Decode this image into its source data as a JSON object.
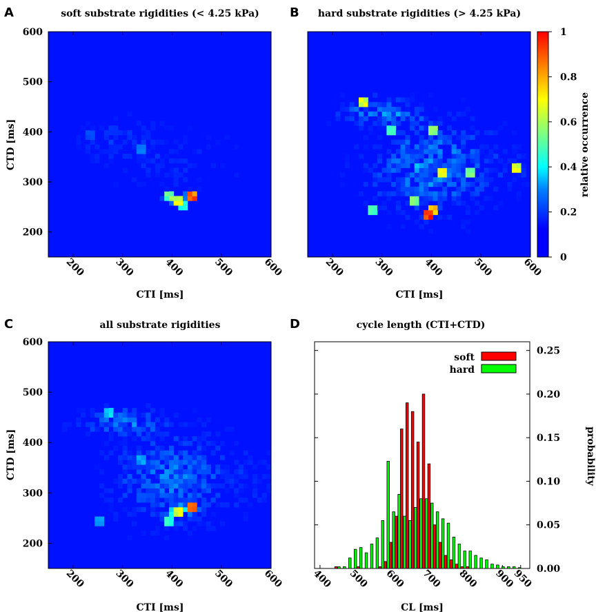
{
  "chart_data": [
    {
      "panel": "A",
      "type": "heatmap",
      "title": "soft substrate rigidities (< 4.25 kPa)",
      "xlabel": "CTI [ms]",
      "ylabel": "CTD [ms]",
      "xlim": [
        150,
        600
      ],
      "ylim": [
        150,
        600
      ],
      "xticks": [
        200,
        300,
        400,
        500,
        600
      ],
      "yticks": [
        200,
        300,
        400,
        500,
        600
      ],
      "hotspots": [
        {
          "x": 410,
          "y": 265,
          "value": 0.7
        },
        {
          "x": 440,
          "y": 270,
          "value": 0.95
        },
        {
          "x": 395,
          "y": 270,
          "value": 0.55
        },
        {
          "x": 420,
          "y": 255,
          "value": 0.5
        },
        {
          "x": 340,
          "y": 365,
          "value": 0.3
        },
        {
          "x": 230,
          "y": 395,
          "value": 0.2
        },
        {
          "x": 280,
          "y": 400,
          "value": 0.15
        }
      ]
    },
    {
      "panel": "B",
      "type": "heatmap",
      "title": "hard substrate rigidities (> 4.25 kPa)",
      "xlabel": "CTI [ms]",
      "ylabel": "",
      "xlim": [
        150,
        600
      ],
      "ylim": [
        150,
        600
      ],
      "xticks": [
        200,
        300,
        400,
        500,
        600
      ],
      "yticks": [],
      "colorbar": {
        "label": "relative occurrence",
        "ticks": [
          "0",
          "0.2",
          "0.4",
          "0.6",
          "0.8",
          "1"
        ]
      },
      "hotspots": [
        {
          "x": 395,
          "y": 230,
          "value": 1.0
        },
        {
          "x": 400,
          "y": 240,
          "value": 0.8
        },
        {
          "x": 260,
          "y": 460,
          "value": 0.7
        },
        {
          "x": 420,
          "y": 320,
          "value": 0.75
        },
        {
          "x": 365,
          "y": 265,
          "value": 0.6
        },
        {
          "x": 280,
          "y": 240,
          "value": 0.5
        },
        {
          "x": 400,
          "y": 400,
          "value": 0.6
        },
        {
          "x": 570,
          "y": 330,
          "value": 0.7
        },
        {
          "x": 480,
          "y": 320,
          "value": 0.6
        },
        {
          "x": 320,
          "y": 400,
          "value": 0.5
        }
      ]
    },
    {
      "panel": "C",
      "type": "heatmap",
      "title": "all substrate rigidities",
      "xlabel": "CTI [ms]",
      "ylabel": "CTD [ms]",
      "xlim": [
        150,
        600
      ],
      "ylim": [
        150,
        600
      ],
      "xticks": [
        200,
        300,
        400,
        500,
        600
      ],
      "yticks": [
        200,
        300,
        400,
        500,
        600
      ],
      "hotspots": [
        {
          "x": 440,
          "y": 268,
          "value": 0.9
        },
        {
          "x": 410,
          "y": 262,
          "value": 0.7
        },
        {
          "x": 395,
          "y": 240,
          "value": 0.5
        },
        {
          "x": 270,
          "y": 455,
          "value": 0.4
        },
        {
          "x": 340,
          "y": 370,
          "value": 0.35
        },
        {
          "x": 255,
          "y": 245,
          "value": 0.35
        }
      ]
    },
    {
      "panel": "D",
      "type": "bar",
      "title": "cycle length (CTI+CTD)",
      "xlabel": "CL [ms]",
      "ylabel": "probability",
      "xlim": [
        385,
        975
      ],
      "ylim": [
        0,
        0.26
      ],
      "xticks": [
        400,
        500,
        600,
        700,
        800,
        900,
        950
      ],
      "yticks": [
        "0.00",
        "0.05",
        "0.10",
        "0.15",
        "0.20",
        "0.25"
      ],
      "bin_width": 15,
      "x": [
        410,
        425,
        440,
        455,
        470,
        485,
        500,
        515,
        530,
        545,
        560,
        575,
        590,
        605,
        620,
        635,
        650,
        665,
        680,
        695,
        710,
        725,
        740,
        755,
        770,
        785,
        800,
        815,
        830,
        845,
        860,
        875,
        890,
        905,
        920,
        935,
        950
      ],
      "series": [
        {
          "name": "soft",
          "color": "#ff0000",
          "values": [
            0.0,
            0.0,
            0.002,
            0.0,
            0.0,
            0.0,
            0.002,
            0.0,
            0.0,
            0.0,
            0.002,
            0.008,
            0.03,
            0.06,
            0.16,
            0.19,
            0.18,
            0.145,
            0.2,
            0.12,
            0.05,
            0.03,
            0.015,
            0.01,
            0.005,
            0.002,
            0.002,
            0.0,
            0.0,
            0.0,
            0.0,
            0.0,
            0.0,
            0.0,
            0.0,
            0.0,
            0.0
          ]
        },
        {
          "name": "hard",
          "color": "#00ff00",
          "values": [
            0.0,
            0.0,
            0.0,
            0.002,
            0.002,
            0.012,
            0.022,
            0.024,
            0.018,
            0.028,
            0.035,
            0.055,
            0.123,
            0.065,
            0.085,
            0.06,
            0.055,
            0.07,
            0.08,
            0.08,
            0.075,
            0.065,
            0.057,
            0.052,
            0.036,
            0.028,
            0.02,
            0.02,
            0.015,
            0.012,
            0.01,
            0.005,
            0.004,
            0.002,
            0.002,
            0.002,
            0.001
          ]
        }
      ],
      "legend": {
        "position": "top-right",
        "entries": [
          "soft",
          "hard"
        ]
      }
    }
  ]
}
